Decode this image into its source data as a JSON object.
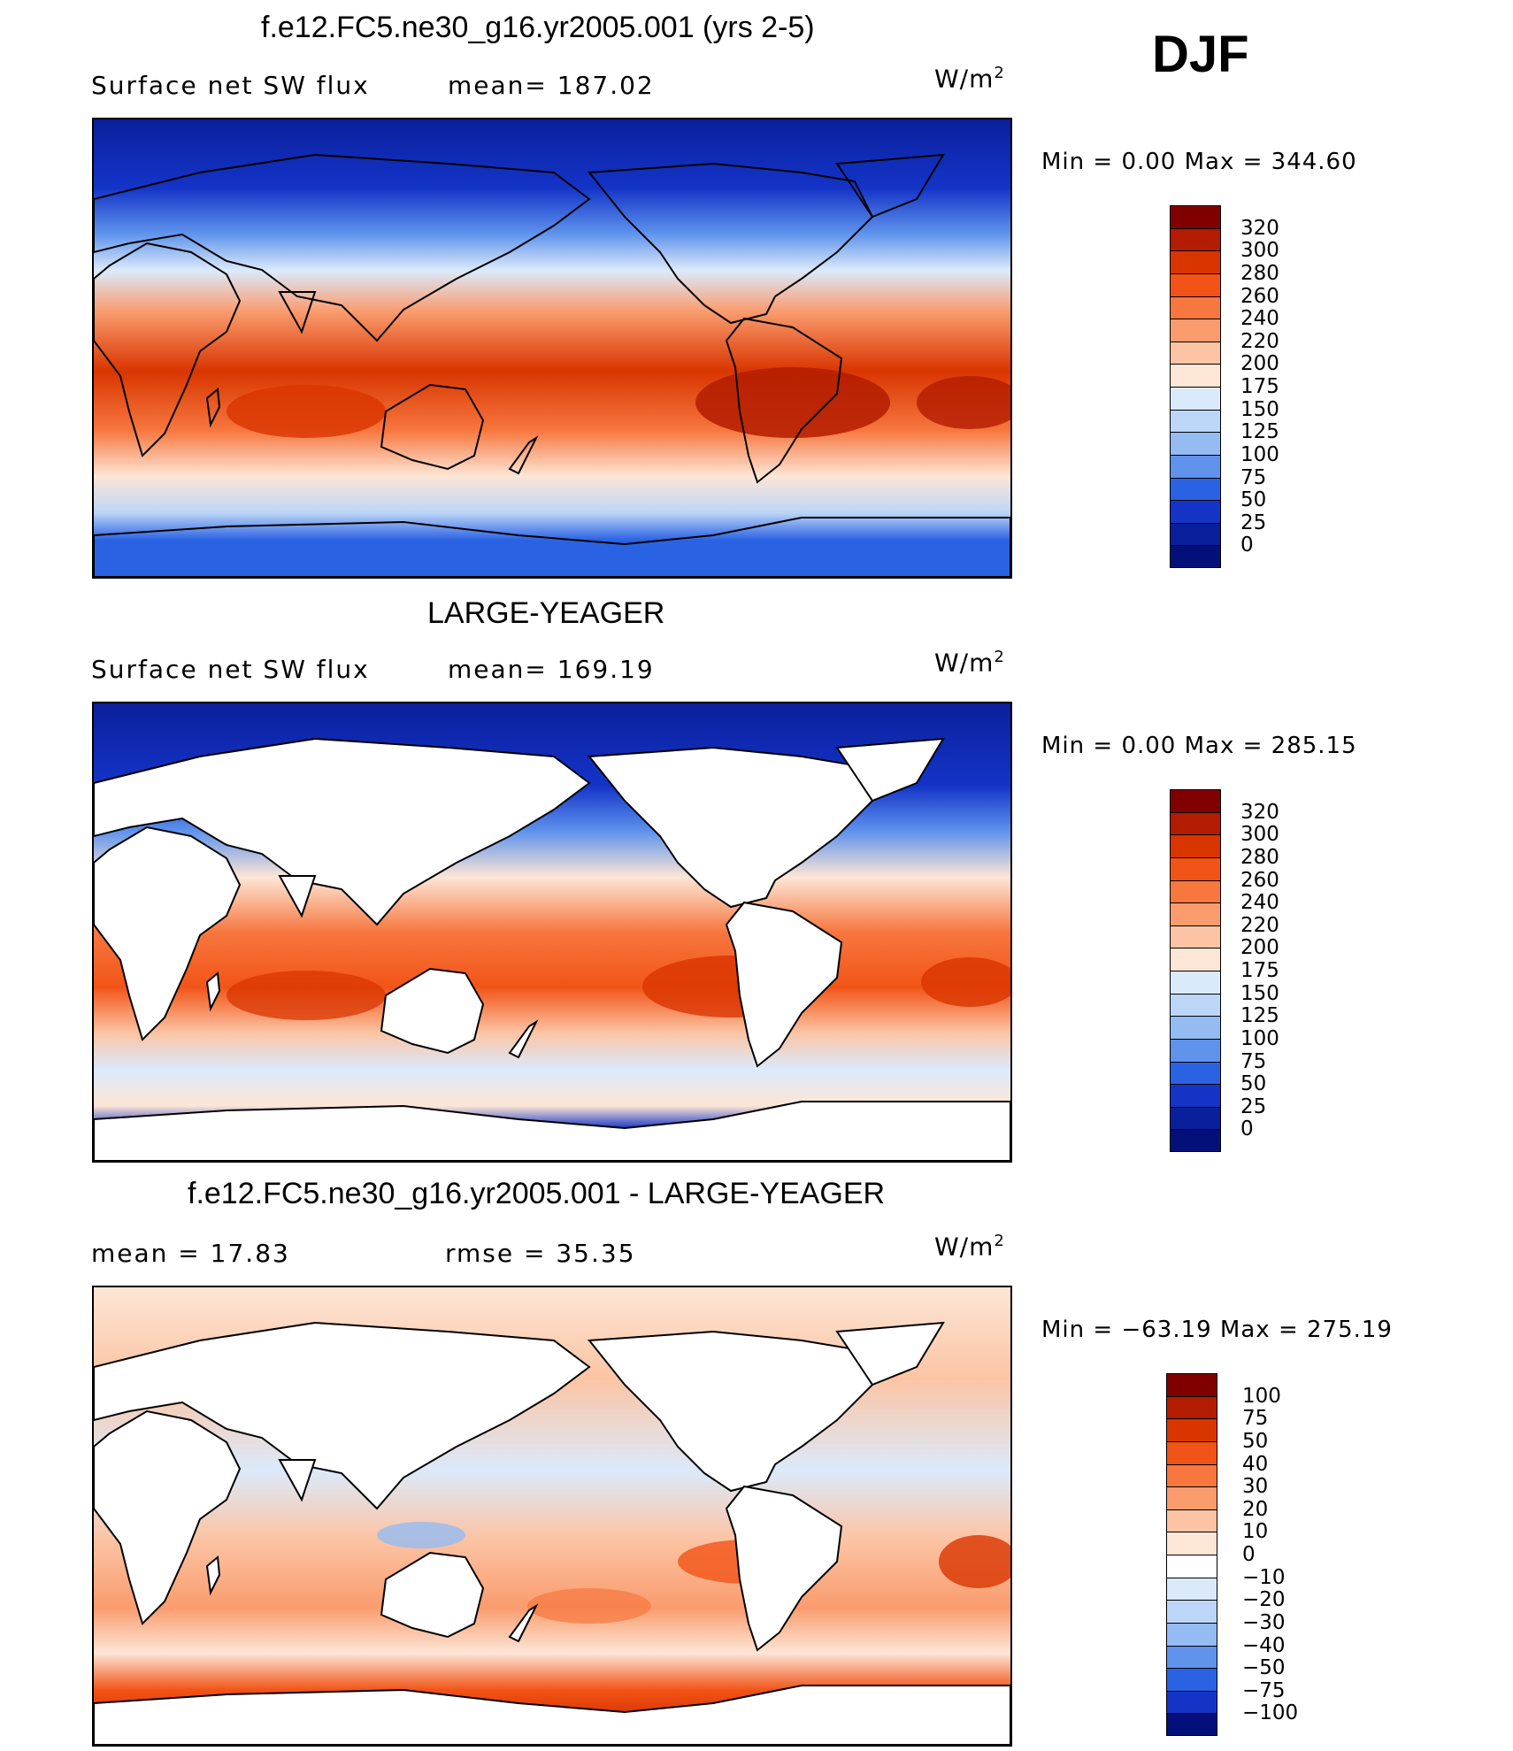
{
  "season": "DJF",
  "units_base": "W/m",
  "units_exp": "2",
  "panels": [
    {
      "id": "model",
      "title": "f.e12.FC5.ne30_g16.yr2005.001 (yrs 2-5)",
      "left_text": "Surface net SW flux",
      "stat_text": "mean=  187.02",
      "minmax_text": "Min  =     0.00  Max  =  344.60",
      "colorbar_labels": [
        "320",
        "300",
        "280",
        "260",
        "240",
        "220",
        "200",
        "175",
        "150",
        "125",
        "100",
        "75",
        "50",
        "25",
        "0"
      ],
      "colorbar_colors": [
        "#800000",
        "#b31c00",
        "#d93500",
        "#f25417",
        "#f7773f",
        "#fa9c6e",
        "#fcc4a4",
        "#fde6d6",
        "#dbeafb",
        "#bcd6f7",
        "#94bbf2",
        "#5f93ec",
        "#2a62e4",
        "#1434c8",
        "#0a1f9c",
        "#03107a"
      ]
    },
    {
      "id": "obs",
      "title": "LARGE-YEAGER",
      "left_text": "Surface net SW flux",
      "stat_text": "mean=  169.19",
      "minmax_text": "Min  =     0.00  Max  =  285.15",
      "colorbar_labels": [
        "320",
        "300",
        "280",
        "260",
        "240",
        "220",
        "200",
        "175",
        "150",
        "125",
        "100",
        "75",
        "50",
        "25",
        "0"
      ],
      "colorbar_colors": [
        "#800000",
        "#b31c00",
        "#d93500",
        "#f25417",
        "#f7773f",
        "#fa9c6e",
        "#fcc4a4",
        "#fde6d6",
        "#dbeafb",
        "#bcd6f7",
        "#94bbf2",
        "#5f93ec",
        "#2a62e4",
        "#1434c8",
        "#0a1f9c",
        "#03107a"
      ]
    },
    {
      "id": "diff",
      "title": "f.e12.FC5.ne30_g16.yr2005.001 - LARGE-YEAGER",
      "left_text": "mean  =    17.83",
      "stat_text": "rmse  =    35.35",
      "minmax_text": "Min  =  −63.19  Max  =  275.19",
      "colorbar_labels": [
        "100",
        "75",
        "50",
        "40",
        "30",
        "20",
        "10",
        "0",
        "−10",
        "−20",
        "−30",
        "−40",
        "−50",
        "−75",
        "−100"
      ],
      "colorbar_colors": [
        "#800000",
        "#b31c00",
        "#d93500",
        "#f25417",
        "#f7773f",
        "#fa9c6e",
        "#fcc4a4",
        "#fde6d6",
        "#ffffff",
        "#dbeafb",
        "#bcd6f7",
        "#94bbf2",
        "#5f93ec",
        "#2a62e4",
        "#1434c8",
        "#03107a"
      ]
    }
  ]
}
